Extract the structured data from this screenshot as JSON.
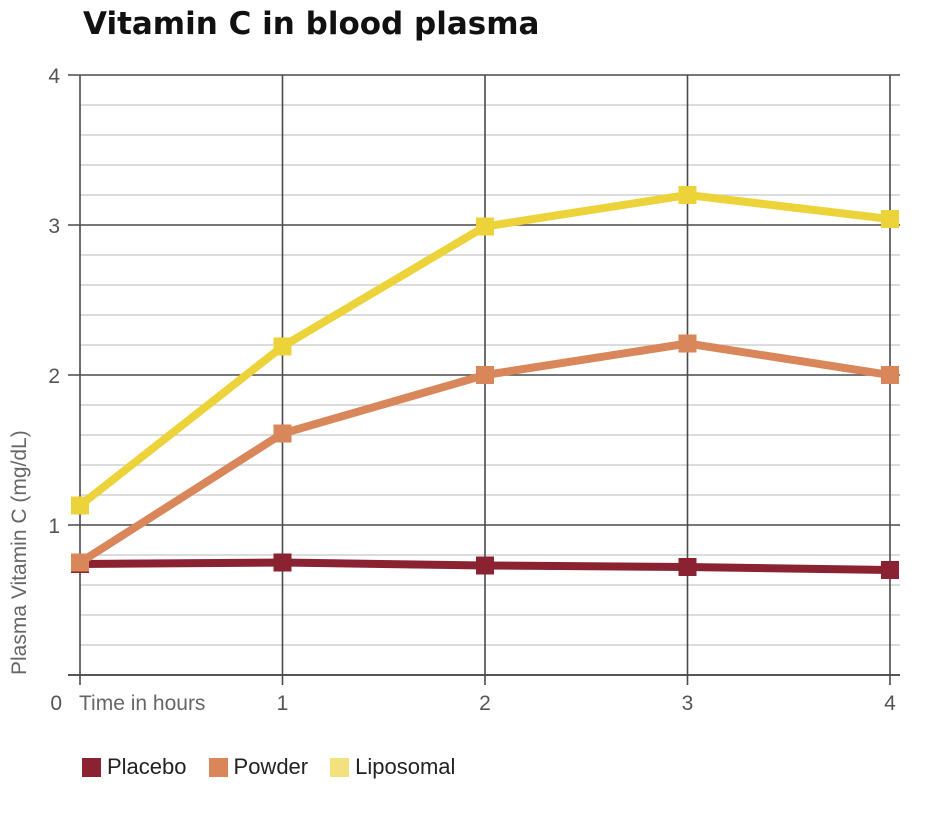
{
  "chart_data": {
    "type": "line",
    "title": "Vitamin C in blood plasma",
    "xlabel": "Time in hours",
    "ylabel": "Plasma Vitamin C (mg/dL)",
    "xlim": [
      0,
      4
    ],
    "ylim": [
      0,
      4
    ],
    "x_ticks": [
      "1",
      "2",
      "3",
      "4"
    ],
    "y_ticks": [
      "0",
      "1",
      "2",
      "3",
      "4"
    ],
    "grid": true,
    "legend_position": "bottom-left",
    "x": [
      0,
      1,
      2,
      3,
      4
    ],
    "series": [
      {
        "name": "Placebo",
        "color": "#8a2232",
        "legend_color": "#8a2232",
        "values": [
          0.74,
          0.75,
          0.73,
          0.72,
          0.7
        ]
      },
      {
        "name": "Powder",
        "color": "#d8865a",
        "legend_color": "#d8865a",
        "values": [
          0.75,
          1.61,
          2.0,
          2.21,
          2.0
        ]
      },
      {
        "name": "Liposomal",
        "color": "#ecd33a",
        "legend_color": "#f2e17e",
        "values": [
          1.13,
          2.19,
          2.99,
          3.2,
          3.04
        ]
      }
    ]
  }
}
